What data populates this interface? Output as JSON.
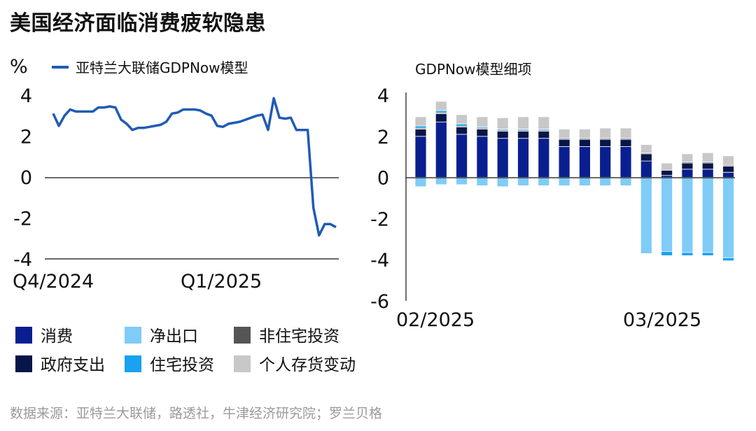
{
  "title": "美国经济面临消费疲软隐患",
  "source": "数据来源：亚特兰大联储，路透社，牛津经济研究院；罗兰贝格",
  "chart_data": [
    {
      "type": "line",
      "unit_label": "%",
      "legend": "亚特兰大联储GDPNow模型",
      "color": "#1f5bb5",
      "xtick_labels": [
        "Q4/2024",
        "Q1/2025"
      ],
      "yticks": [
        4,
        2,
        0,
        -2,
        -4
      ],
      "ylim": [
        -4,
        4
      ],
      "values": [
        3.1,
        2.5,
        3.0,
        3.3,
        3.2,
        3.2,
        3.2,
        3.2,
        3.4,
        3.4,
        3.45,
        3.4,
        2.8,
        2.6,
        2.3,
        2.4,
        2.4,
        2.45,
        2.5,
        2.55,
        2.7,
        3.1,
        3.15,
        3.3,
        3.3,
        3.3,
        3.25,
        3.1,
        3.0,
        2.5,
        2.45,
        2.6,
        2.65,
        2.7,
        2.8,
        2.9,
        3.0,
        3.05,
        2.3,
        3.85,
        2.9,
        2.85,
        2.9,
        2.3,
        2.3,
        2.3,
        -1.5,
        -2.85,
        -2.3,
        -2.3,
        -2.45
      ]
    },
    {
      "type": "bar",
      "stacked": true,
      "subtitle": "GDPNow模型细项",
      "xtick_labels": [
        "02/2025",
        "03/2025"
      ],
      "yticks": [
        4,
        2,
        0,
        -2,
        -4,
        -6
      ],
      "ylim": [
        -6,
        4
      ],
      "series": [
        {
          "name": "消费",
          "color": "#0a1f8f",
          "values": [
            2.0,
            2.7,
            2.1,
            2.0,
            1.9,
            1.9,
            1.9,
            1.5,
            1.5,
            1.5,
            1.5,
            0.8,
            0.1,
            0.4,
            0.4,
            0.25
          ]
        },
        {
          "name": "政府支出",
          "color": "#061648",
          "values": [
            0.35,
            0.4,
            0.35,
            0.35,
            0.35,
            0.35,
            0.35,
            0.35,
            0.35,
            0.35,
            0.35,
            0.35,
            0.25,
            0.3,
            0.3,
            0.3
          ]
        },
        {
          "name": "非住宅投资",
          "color": "#555555",
          "values": [
            0.05,
            0.05,
            0.05,
            0.05,
            0.05,
            0.05,
            0.05,
            0.05,
            0.05,
            0.05,
            0.05,
            0.05,
            0.0,
            0.05,
            0.05,
            0.05
          ]
        },
        {
          "name": "净出口",
          "color": "#7fccf8",
          "values": [
            -0.45,
            -0.35,
            -0.35,
            -0.4,
            -0.45,
            -0.4,
            -0.4,
            -0.4,
            -0.4,
            -0.4,
            -0.4,
            -3.7,
            -3.6,
            -3.65,
            -3.65,
            -3.9
          ]
        },
        {
          "name": "住宅投资",
          "color": "#1aa1f0",
          "values": [
            0.1,
            0.1,
            0.1,
            0.05,
            0.05,
            0.05,
            0.05,
            0.0,
            0.0,
            0.0,
            0.0,
            0.0,
            -0.2,
            -0.15,
            -0.15,
            -0.15
          ]
        },
        {
          "name": "个人存货变动",
          "color": "#c8c8c8",
          "values": [
            0.45,
            0.45,
            0.45,
            0.5,
            0.55,
            0.6,
            0.6,
            0.45,
            0.45,
            0.5,
            0.5,
            0.4,
            0.35,
            0.4,
            0.45,
            0.45
          ]
        }
      ]
    }
  ],
  "legend_items": [
    {
      "label": "消费",
      "color": "#0a1f8f"
    },
    {
      "label": "净出口",
      "color": "#7fccf8"
    },
    {
      "label": "非住宅投资",
      "color": "#555555"
    },
    {
      "label": "政府支出",
      "color": "#061648"
    },
    {
      "label": "住宅投资",
      "color": "#1aa1f0"
    },
    {
      "label": "个人存货变动",
      "color": "#c8c8c8"
    }
  ]
}
